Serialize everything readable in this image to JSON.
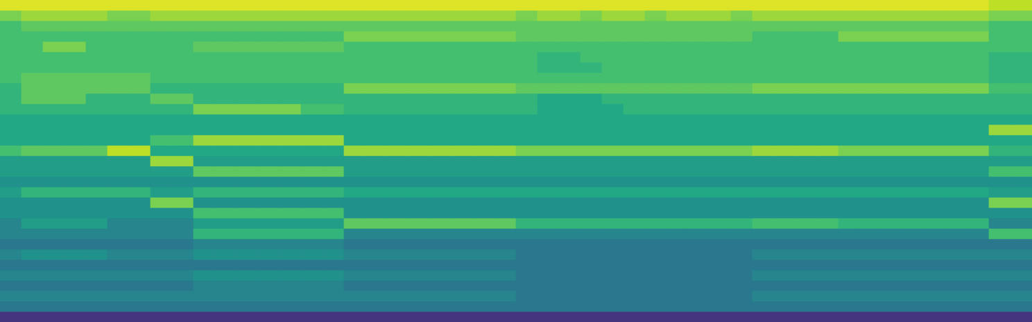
{
  "chart_data": {
    "type": "heatmap",
    "tick_labels": false,
    "grid": false,
    "ylim": [
      0,
      31
    ],
    "clim": [
      0,
      20
    ],
    "cells": [
      [
        19,
        19,
        19,
        19,
        19,
        19,
        19,
        19,
        19,
        19,
        19,
        19,
        19,
        19,
        19,
        19,
        19,
        19,
        19,
        19,
        19,
        19,
        19,
        19,
        19,
        19,
        19,
        19,
        19,
        19,
        19,
        19,
        19,
        19,
        19,
        19,
        19,
        19,
        19,
        19,
        19,
        19,
        19,
        19,
        19,
        19,
        18,
        18
      ],
      [
        16,
        17,
        17,
        17,
        17,
        16,
        16,
        17,
        17,
        17,
        17,
        17,
        17,
        17,
        17,
        17,
        17,
        17,
        17,
        17,
        17,
        17,
        17,
        17,
        16,
        17,
        17,
        16,
        17,
        17,
        16,
        17,
        17,
        17,
        16,
        17,
        17,
        17,
        17,
        17,
        17,
        17,
        17,
        17,
        17,
        17,
        16,
        16
      ],
      [
        14,
        15,
        15,
        15,
        15,
        15,
        15,
        15,
        15,
        15,
        15,
        15,
        15,
        15,
        15,
        15,
        15,
        15,
        15,
        15,
        15,
        15,
        15,
        15,
        15,
        15,
        15,
        15,
        15,
        15,
        15,
        15,
        15,
        15,
        15,
        15,
        15,
        15,
        15,
        15,
        15,
        15,
        15,
        15,
        15,
        15,
        14,
        14
      ],
      [
        14,
        14,
        14,
        14,
        14,
        14,
        14,
        14,
        14,
        14,
        14,
        14,
        14,
        14,
        14,
        14,
        16,
        16,
        16,
        16,
        16,
        16,
        16,
        16,
        15,
        15,
        15,
        15,
        15,
        15,
        15,
        15,
        15,
        15,
        15,
        14,
        14,
        14,
        14,
        16,
        16,
        16,
        16,
        16,
        16,
        16,
        14,
        14
      ],
      [
        14,
        14,
        16,
        16,
        14,
        14,
        14,
        14,
        14,
        15,
        15,
        15,
        15,
        15,
        15,
        15,
        14,
        14,
        14,
        14,
        14,
        14,
        14,
        14,
        14,
        14,
        14,
        14,
        14,
        14,
        14,
        14,
        14,
        14,
        14,
        14,
        14,
        14,
        14,
        14,
        14,
        14,
        14,
        14,
        14,
        14,
        14,
        14
      ],
      [
        14,
        14,
        14,
        14,
        14,
        14,
        14,
        14,
        14,
        14,
        14,
        14,
        14,
        14,
        14,
        14,
        14,
        14,
        14,
        14,
        14,
        14,
        14,
        14,
        14,
        13,
        13,
        14,
        14,
        14,
        14,
        14,
        14,
        14,
        14,
        14,
        14,
        14,
        14,
        14,
        14,
        14,
        14,
        14,
        14,
        14,
        13,
        13
      ],
      [
        14,
        14,
        14,
        14,
        14,
        14,
        14,
        14,
        14,
        14,
        14,
        14,
        14,
        14,
        14,
        14,
        14,
        14,
        14,
        14,
        14,
        14,
        14,
        14,
        14,
        13,
        13,
        13,
        14,
        14,
        14,
        14,
        14,
        14,
        14,
        14,
        14,
        14,
        14,
        14,
        14,
        14,
        14,
        14,
        14,
        14,
        13,
        13
      ],
      [
        14,
        15,
        15,
        15,
        15,
        15,
        15,
        14,
        14,
        14,
        14,
        14,
        14,
        14,
        14,
        14,
        14,
        14,
        14,
        14,
        14,
        14,
        14,
        14,
        14,
        14,
        14,
        14,
        14,
        14,
        14,
        14,
        14,
        14,
        14,
        14,
        14,
        14,
        14,
        14,
        14,
        14,
        14,
        14,
        14,
        14,
        13,
        13
      ],
      [
        13,
        15,
        15,
        15,
        15,
        15,
        15,
        13,
        13,
        13,
        13,
        13,
        13,
        13,
        13,
        13,
        16,
        16,
        16,
        16,
        16,
        16,
        16,
        16,
        15,
        15,
        15,
        15,
        15,
        15,
        15,
        15,
        15,
        15,
        15,
        16,
        16,
        16,
        16,
        16,
        16,
        16,
        16,
        16,
        16,
        16,
        14,
        14
      ],
      [
        13,
        15,
        15,
        15,
        13,
        13,
        13,
        15,
        15,
        13,
        13,
        13,
        13,
        13,
        13,
        13,
        13,
        13,
        13,
        13,
        13,
        13,
        13,
        13,
        13,
        12,
        12,
        12,
        13,
        13,
        13,
        13,
        13,
        13,
        13,
        13,
        13,
        13,
        13,
        13,
        13,
        13,
        13,
        13,
        13,
        13,
        13,
        13
      ],
      [
        13,
        13,
        13,
        13,
        13,
        13,
        13,
        13,
        13,
        16,
        16,
        16,
        16,
        16,
        14,
        14,
        13,
        13,
        13,
        13,
        13,
        13,
        13,
        13,
        13,
        12,
        12,
        12,
        12,
        13,
        13,
        13,
        13,
        13,
        13,
        13,
        13,
        13,
        13,
        13,
        13,
        13,
        13,
        13,
        13,
        13,
        13,
        13
      ],
      [
        12,
        12,
        12,
        12,
        12,
        12,
        12,
        12,
        12,
        12,
        12,
        12,
        12,
        12,
        12,
        12,
        12,
        12,
        12,
        12,
        12,
        12,
        12,
        12,
        12,
        12,
        12,
        12,
        12,
        12,
        12,
        12,
        12,
        12,
        12,
        12,
        12,
        12,
        12,
        12,
        12,
        12,
        12,
        12,
        12,
        12,
        12,
        12
      ],
      [
        12,
        12,
        12,
        12,
        12,
        12,
        12,
        12,
        12,
        12,
        12,
        12,
        12,
        12,
        12,
        12,
        12,
        12,
        12,
        12,
        12,
        12,
        12,
        12,
        12,
        12,
        12,
        12,
        12,
        12,
        12,
        12,
        12,
        12,
        12,
        12,
        12,
        12,
        12,
        12,
        12,
        12,
        12,
        12,
        12,
        12,
        17,
        17
      ],
      [
        12,
        12,
        12,
        12,
        12,
        12,
        12,
        14,
        14,
        17,
        17,
        17,
        17,
        17,
        17,
        17,
        12,
        12,
        12,
        12,
        12,
        12,
        12,
        12,
        12,
        12,
        12,
        12,
        12,
        12,
        12,
        12,
        12,
        12,
        12,
        12,
        12,
        12,
        12,
        12,
        12,
        12,
        12,
        12,
        12,
        12,
        12,
        12
      ],
      [
        14,
        15,
        15,
        15,
        15,
        18,
        18,
        12,
        12,
        12,
        12,
        12,
        12,
        12,
        12,
        12,
        17,
        17,
        17,
        17,
        17,
        17,
        17,
        17,
        16,
        16,
        16,
        16,
        16,
        16,
        16,
        16,
        16,
        16,
        16,
        17,
        17,
        17,
        17,
        16,
        16,
        16,
        16,
        16,
        16,
        16,
        13,
        13
      ],
      [
        11,
        11,
        11,
        11,
        11,
        11,
        11,
        17,
        17,
        11,
        11,
        11,
        11,
        11,
        11,
        11,
        11,
        11,
        11,
        11,
        11,
        11,
        11,
        11,
        11,
        11,
        11,
        11,
        11,
        11,
        11,
        11,
        11,
        11,
        11,
        11,
        11,
        11,
        11,
        11,
        11,
        11,
        11,
        11,
        11,
        11,
        11,
        11
      ],
      [
        11,
        11,
        11,
        11,
        11,
        11,
        11,
        11,
        11,
        15,
        15,
        15,
        15,
        15,
        15,
        15,
        11,
        11,
        11,
        11,
        11,
        11,
        11,
        11,
        11,
        11,
        11,
        11,
        11,
        11,
        11,
        11,
        11,
        11,
        11,
        11,
        11,
        11,
        11,
        11,
        11,
        11,
        11,
        11,
        11,
        11,
        14,
        14
      ],
      [
        10,
        10,
        10,
        10,
        10,
        10,
        10,
        10,
        10,
        10,
        10,
        10,
        10,
        10,
        10,
        10,
        10,
        10,
        10,
        10,
        10,
        10,
        10,
        10,
        10,
        10,
        10,
        10,
        10,
        10,
        10,
        10,
        10,
        10,
        10,
        10,
        10,
        10,
        10,
        10,
        10,
        10,
        10,
        10,
        10,
        10,
        10,
        10
      ],
      [
        11,
        13,
        13,
        13,
        13,
        13,
        13,
        11,
        11,
        13,
        13,
        13,
        13,
        13,
        13,
        13,
        12,
        12,
        12,
        12,
        12,
        12,
        12,
        12,
        12,
        12,
        12,
        12,
        12,
        12,
        12,
        12,
        12,
        12,
        12,
        12,
        12,
        12,
        12,
        12,
        12,
        12,
        12,
        12,
        12,
        12,
        11,
        11
      ],
      [
        10,
        10,
        10,
        10,
        10,
        10,
        10,
        16,
        16,
        10,
        10,
        10,
        10,
        10,
        10,
        10,
        10,
        10,
        10,
        10,
        10,
        10,
        10,
        10,
        10,
        10,
        10,
        10,
        10,
        10,
        10,
        10,
        10,
        10,
        10,
        10,
        10,
        10,
        10,
        10,
        10,
        10,
        10,
        10,
        10,
        10,
        16,
        16
      ],
      [
        10,
        10,
        10,
        10,
        10,
        10,
        10,
        10,
        10,
        14,
        14,
        14,
        14,
        14,
        14,
        14,
        10,
        10,
        10,
        10,
        10,
        10,
        10,
        10,
        10,
        10,
        10,
        10,
        10,
        10,
        10,
        10,
        10,
        10,
        10,
        10,
        10,
        10,
        10,
        10,
        10,
        10,
        10,
        10,
        10,
        10,
        10,
        10
      ],
      [
        9,
        11,
        11,
        11,
        11,
        9,
        9,
        9,
        9,
        11,
        11,
        11,
        11,
        11,
        11,
        11,
        15,
        15,
        15,
        15,
        15,
        15,
        15,
        15,
        13,
        13,
        13,
        13,
        13,
        13,
        13,
        13,
        13,
        13,
        13,
        14,
        14,
        14,
        14,
        13,
        13,
        13,
        13,
        13,
        13,
        13,
        9,
        9
      ],
      [
        9,
        9,
        9,
        9,
        9,
        9,
        9,
        9,
        9,
        13,
        13,
        13,
        13,
        13,
        13,
        13,
        9,
        9,
        9,
        9,
        9,
        9,
        9,
        9,
        9,
        9,
        9,
        9,
        9,
        9,
        9,
        9,
        9,
        9,
        9,
        9,
        9,
        9,
        9,
        9,
        9,
        9,
        9,
        9,
        9,
        9,
        14,
        14
      ],
      [
        8,
        8,
        8,
        8,
        8,
        8,
        8,
        8,
        8,
        9,
        9,
        9,
        9,
        9,
        9,
        9,
        8,
        8,
        8,
        8,
        8,
        8,
        8,
        8,
        8,
        8,
        8,
        8,
        8,
        8,
        8,
        8,
        8,
        8,
        8,
        8,
        8,
        8,
        8,
        8,
        8,
        8,
        8,
        8,
        8,
        8,
        8,
        8
      ],
      [
        9,
        10,
        10,
        10,
        10,
        9,
        9,
        9,
        9,
        10,
        10,
        10,
        10,
        10,
        10,
        10,
        9,
        9,
        9,
        9,
        9,
        9,
        9,
        9,
        8,
        8,
        8,
        8,
        8,
        8,
        8,
        8,
        8,
        8,
        8,
        9,
        9,
        9,
        9,
        9,
        9,
        9,
        9,
        9,
        9,
        9,
        9,
        9
      ],
      [
        8,
        8,
        8,
        8,
        8,
        8,
        8,
        8,
        8,
        8,
        8,
        8,
        8,
        8,
        8,
        8,
        8,
        8,
        8,
        8,
        8,
        8,
        8,
        8,
        8,
        8,
        8,
        8,
        8,
        8,
        8,
        8,
        8,
        8,
        8,
        8,
        8,
        8,
        8,
        8,
        8,
        8,
        8,
        8,
        8,
        8,
        8,
        8
      ],
      [
        9,
        9,
        9,
        9,
        9,
        9,
        9,
        9,
        9,
        10,
        10,
        10,
        10,
        10,
        10,
        10,
        9,
        9,
        9,
        9,
        9,
        9,
        9,
        9,
        8,
        8,
        8,
        8,
        8,
        8,
        8,
        8,
        8,
        8,
        8,
        9,
        9,
        9,
        9,
        9,
        9,
        9,
        9,
        9,
        9,
        9,
        9,
        9
      ],
      [
        8,
        8,
        8,
        8,
        8,
        8,
        8,
        8,
        8,
        9,
        9,
        9,
        9,
        9,
        9,
        9,
        8,
        8,
        8,
        8,
        8,
        8,
        8,
        8,
        8,
        8,
        8,
        8,
        8,
        8,
        8,
        8,
        8,
        8,
        8,
        8,
        8,
        8,
        8,
        8,
        8,
        8,
        8,
        8,
        8,
        8,
        8,
        8
      ],
      [
        9,
        9,
        9,
        9,
        9,
        9,
        9,
        9,
        9,
        9,
        9,
        9,
        9,
        9,
        9,
        9,
        9,
        9,
        9,
        9,
        9,
        9,
        9,
        9,
        8,
        8,
        8,
        8,
        8,
        8,
        8,
        8,
        8,
        8,
        8,
        9,
        9,
        9,
        9,
        9,
        9,
        9,
        9,
        9,
        9,
        9,
        9,
        9
      ],
      [
        8,
        8,
        8,
        8,
        8,
        8,
        8,
        8,
        8,
        8,
        8,
        8,
        8,
        8,
        8,
        8,
        8,
        8,
        8,
        8,
        8,
        8,
        8,
        8,
        8,
        8,
        8,
        8,
        8,
        8,
        8,
        8,
        8,
        8,
        8,
        8,
        8,
        8,
        8,
        8,
        8,
        8,
        8,
        8,
        8,
        8,
        8,
        8
      ],
      [
        3,
        3,
        3,
        3,
        3,
        3,
        3,
        3,
        3,
        3,
        3,
        3,
        3,
        3,
        3,
        3,
        3,
        3,
        3,
        3,
        3,
        3,
        3,
        3,
        3,
        3,
        3,
        3,
        3,
        3,
        3,
        3,
        3,
        3,
        3,
        3,
        3,
        3,
        3,
        3,
        3,
        3,
        3,
        3,
        3,
        3,
        3,
        3
      ]
    ]
  }
}
